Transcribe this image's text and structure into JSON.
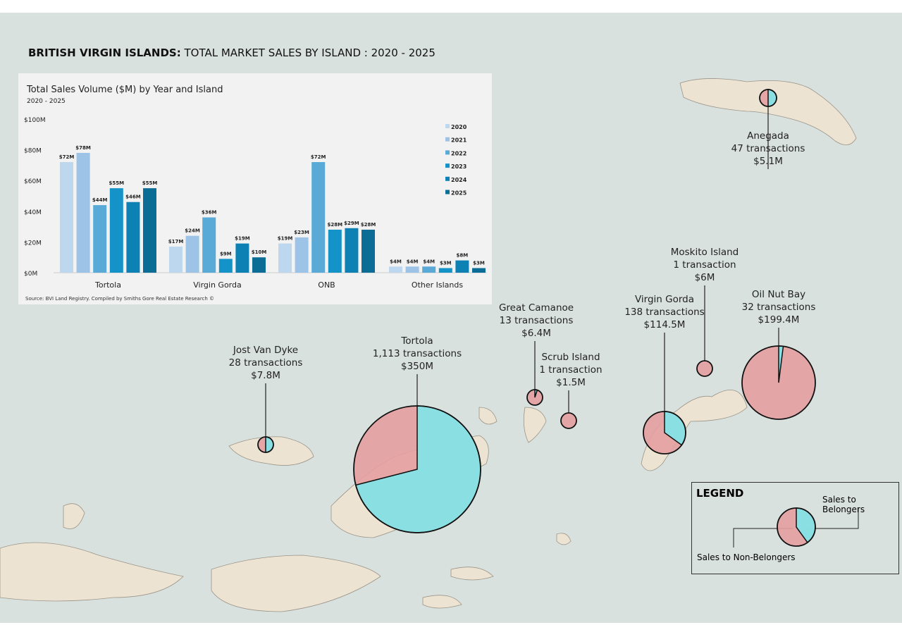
{
  "title": {
    "bold": "BRITISH VIRGIN ISLANDS:",
    "rest": " TOTAL MARKET SALES BY ISLAND : 2020 - 2025"
  },
  "colors": {
    "belongers": "#7fe6ea",
    "non_belongers": "#e49ea0",
    "land": "#ece3d2",
    "sea": "#d9e1de"
  },
  "islands": [
    {
      "name": "Anegada",
      "transactions": "47 transactions",
      "value": "$5.1M",
      "belonger_share": 0.5
    },
    {
      "name": "Moskito Island",
      "transactions": "1 transaction",
      "value": "$6M",
      "belonger_share": 0
    },
    {
      "name": "Oil Nut Bay",
      "transactions": "32 transactions",
      "value": "$199.4M",
      "belonger_share": 0.02
    },
    {
      "name": "Virgin Gorda",
      "transactions": "138 transactions",
      "value": "$114.5M",
      "belonger_share": 0.35
    },
    {
      "name": "Great Camanoe",
      "transactions": "13 transactions",
      "value": "$6.4M",
      "belonger_share": 0.05
    },
    {
      "name": "Scrub Island",
      "transactions": "1 transaction",
      "value": "$1.5M",
      "belonger_share": 0
    },
    {
      "name": "Tortola",
      "transactions": "1,113 transactions",
      "value": "$350M",
      "belonger_share": 0.71
    },
    {
      "name": "Jost Van Dyke",
      "transactions": "28 transactions",
      "value": "$7.8M",
      "belonger_share": 0.5
    }
  ],
  "legend": {
    "title": "LEGEND",
    "belongers": "Sales to Belongers",
    "non_belongers": "Sales to Non-Belongers",
    "belonger_share": 0.4
  },
  "chart_data": {
    "type": "bar",
    "title": "Total Sales Volume ($M) by Year and Island",
    "subtitle": "2020 - 2025",
    "categories": [
      "Tortola",
      "Virgin Gorda",
      "ONB",
      "Other Islands"
    ],
    "series": [
      {
        "name": "2020",
        "color": "#bdd7ee",
        "values": [
          72,
          17,
          19,
          4
        ]
      },
      {
        "name": "2021",
        "color": "#9dc3e6",
        "values": [
          78,
          24,
          23,
          4
        ]
      },
      {
        "name": "2022",
        "color": "#5aaad8",
        "values": [
          44,
          36,
          72,
          4
        ]
      },
      {
        "name": "2023",
        "color": "#1493c9",
        "values": [
          55,
          9,
          28,
          3
        ]
      },
      {
        "name": "2024",
        "color": "#0e81b4",
        "values": [
          46,
          19,
          29,
          8
        ]
      },
      {
        "name": "2025",
        "color": "#0b6d96",
        "values": [
          55,
          10,
          28,
          3
        ]
      }
    ],
    "yticks": [
      "$0M",
      "$20M",
      "$40M",
      "$60M",
      "$80M",
      "$100M"
    ],
    "ylim": [
      0,
      100
    ],
    "legend_position": "right",
    "source": "Source: BVI Land Registry. Compiled by Smiths Gore Real Estate Research ©"
  }
}
